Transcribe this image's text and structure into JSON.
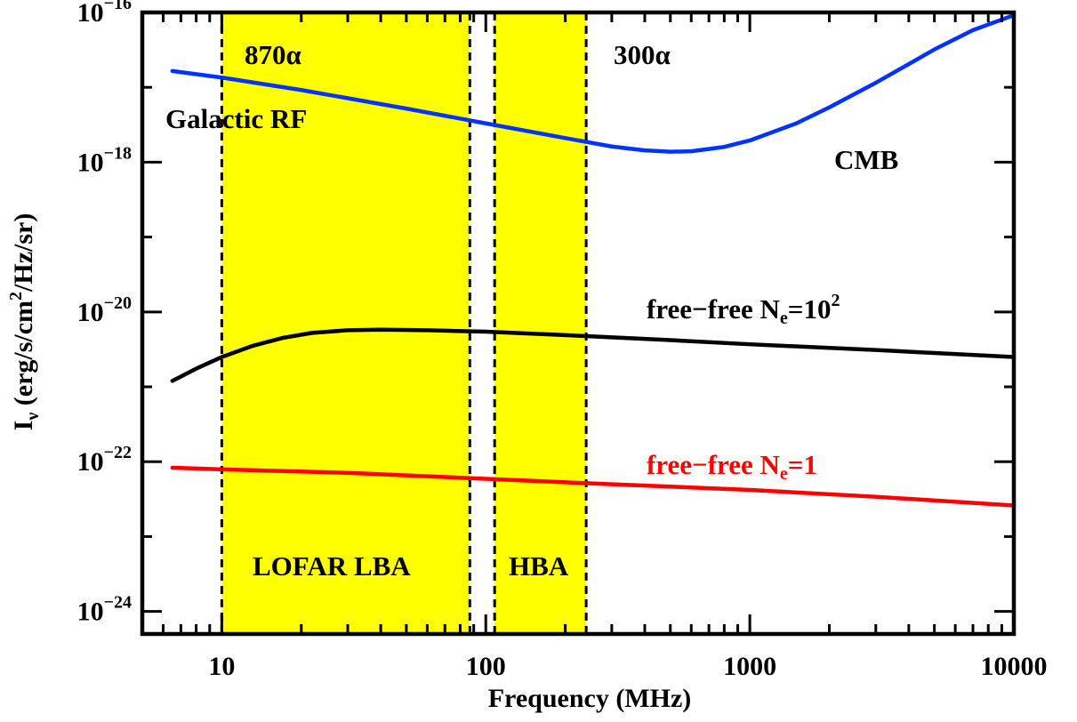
{
  "chart_data": {
    "type": "line",
    "title": "",
    "xlabel": "Frequency (MHz)",
    "ylabel": "I",
    "ylabel_sub": "ν",
    "ylabel_rest": " (erg/s/cm",
    "ylabel_sup": "2",
    "ylabel_end": "/Hz/sr)",
    "x_scale": "log",
    "y_scale": "log",
    "xlim": [
      5,
      10000
    ],
    "ylim": [
      5e-25,
      1e-16
    ],
    "x_ticks": [
      {
        "value": 10,
        "label": "10"
      },
      {
        "value": 100,
        "label": "100"
      },
      {
        "value": 1000,
        "label": "1000"
      },
      {
        "value": 10000,
        "label": "10000"
      }
    ],
    "y_ticks": [
      {
        "value": 1e-24,
        "base": "10",
        "exp": "−24"
      },
      {
        "value": 1e-22,
        "base": "10",
        "exp": "−22"
      },
      {
        "value": 1e-20,
        "base": "10",
        "exp": "−20"
      },
      {
        "value": 1e-18,
        "base": "10",
        "exp": "−18"
      },
      {
        "value": 1e-16,
        "base": "10",
        "exp": "−16"
      }
    ],
    "bands": [
      {
        "name": "LOFAR LBA",
        "x0": 10,
        "x1": 87,
        "color": "#ffff00",
        "top_label": "870α"
      },
      {
        "name": "HBA",
        "x0": 108,
        "x1": 240,
        "color": "#ffff00",
        "top_label": "300α"
      }
    ],
    "series": [
      {
        "color": "#0033ff",
        "x": [
          6.5,
          10,
          20,
          50,
          100,
          200,
          300,
          400,
          500,
          600,
          800,
          1000,
          1500,
          2000,
          3000,
          5000,
          7000,
          10000
        ],
        "y": [
          1.65e-17,
          1.35e-17,
          9.2e-18,
          5.2e-18,
          3.3e-18,
          2.1e-18,
          1.62e-18,
          1.44e-18,
          1.38e-18,
          1.4e-18,
          1.6e-18,
          1.95e-18,
          3.3e-18,
          5.4e-18,
          1.15e-17,
          3.2e-17,
          5.8e-17,
          9.2e-17
        ]
      },
      {
        "color": "#000000",
        "x": [
          6.5,
          8,
          10,
          13,
          17,
          22,
          30,
          40,
          60,
          100,
          200,
          500,
          1000,
          3000,
          10000
        ],
        "y": [
          1.2e-21,
          1.75e-21,
          2.5e-21,
          3.5e-21,
          4.5e-21,
          5.25e-21,
          5.7e-21,
          5.8e-21,
          5.7e-21,
          5.45e-21,
          4.9e-21,
          4.2e-21,
          3.7e-21,
          3.1e-21,
          2.5e-21
        ]
      },
      {
        "color": "#ff0000",
        "x": [
          6.5,
          10,
          30,
          100,
          300,
          1000,
          3000,
          10000
        ],
        "y": [
          8.3e-23,
          7.9e-23,
          7.1e-23,
          5.9e-23,
          5e-23,
          4.2e-23,
          3.4e-23,
          2.6e-23
        ]
      }
    ],
    "annotations": {
      "galactic_rf": {
        "text": "Galactic RF",
        "color": "#000000"
      },
      "cmb": {
        "text": "CMB",
        "color": "#000000"
      },
      "ff_high": {
        "prefix": "free−free N",
        "sub": "e",
        "mid": "=10",
        "sup": "2",
        "color": "#000000"
      },
      "ff_low": {
        "prefix": "free−free N",
        "sub": "e",
        "mid": "=1",
        "color": "#ff0000"
      }
    }
  }
}
